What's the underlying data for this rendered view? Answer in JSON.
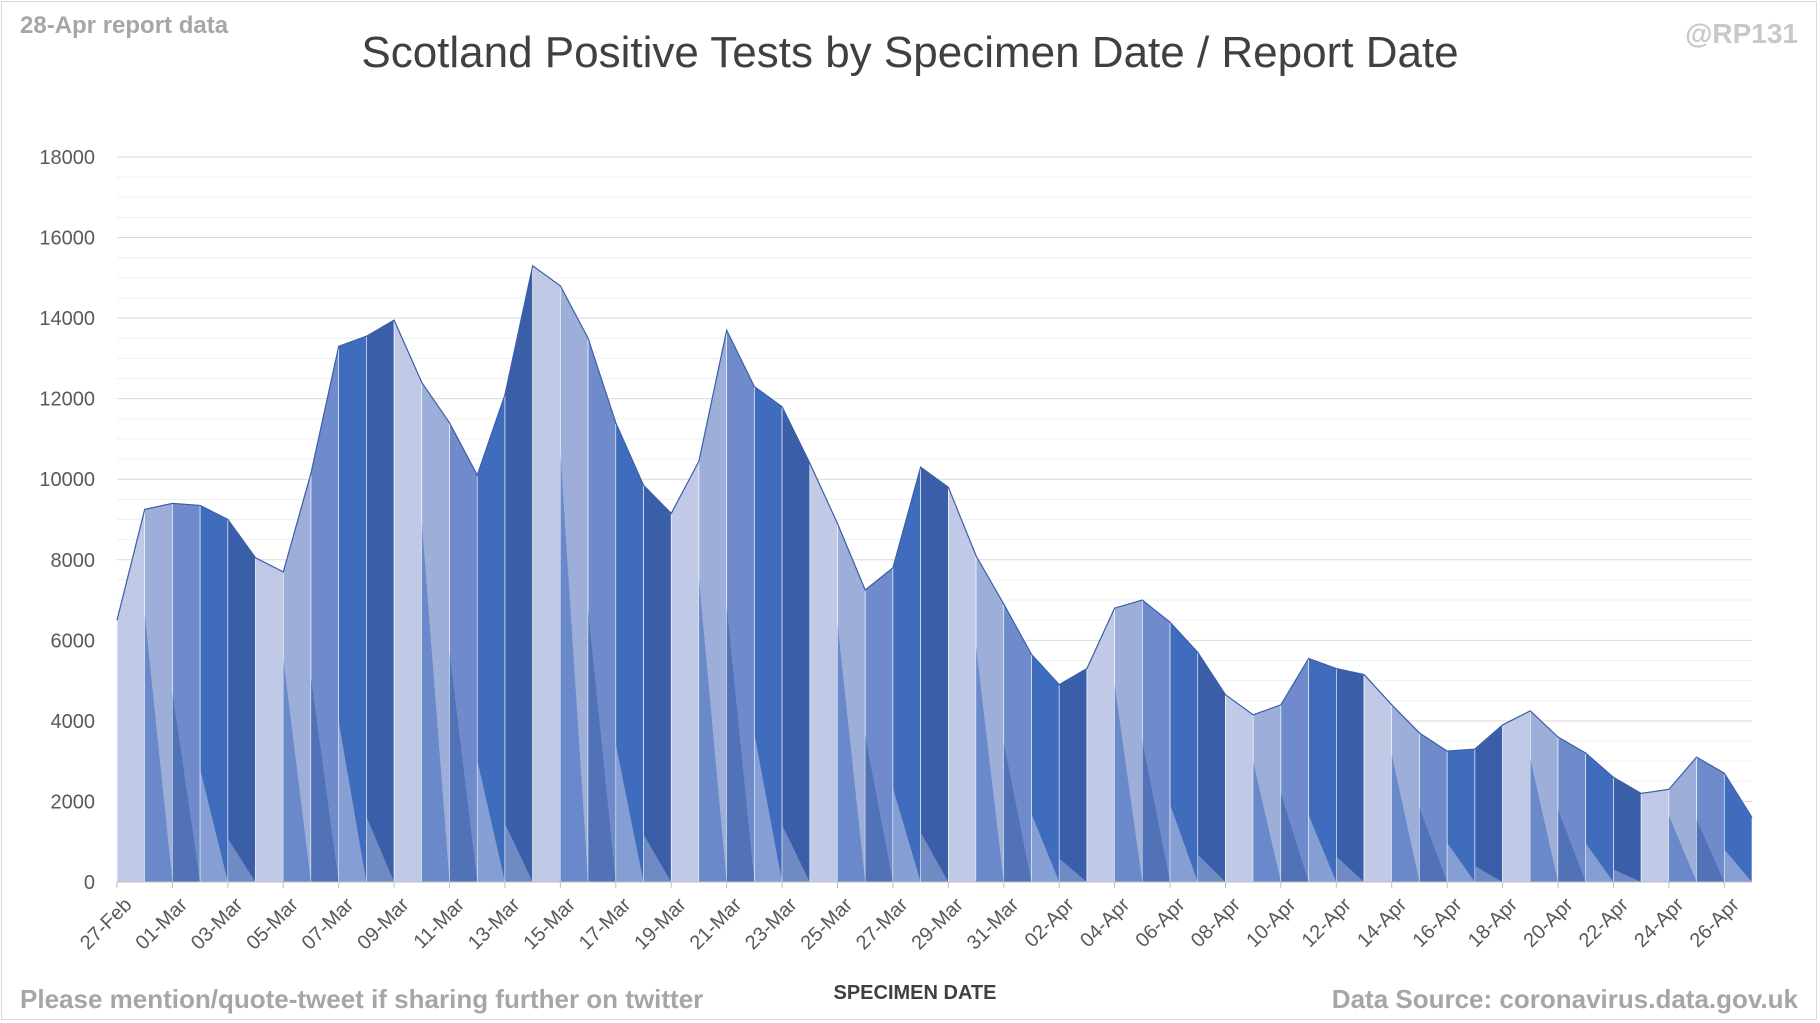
{
  "header": {
    "report_tag": "28-Apr report data",
    "handle": "@RP131",
    "footer_note": "Please mention/quote-tweet if sharing further on twitter",
    "data_source": "Data Source: coronavirus.data.gov.uk"
  },
  "chart_data": {
    "type": "area",
    "title": "Scotland Positive Tests by Specimen Date / Report Date",
    "xlabel": "SPECIMEN DATE",
    "ylabel": "",
    "ylim": [
      0,
      18000
    ],
    "yticks": [
      0,
      2000,
      4000,
      6000,
      8000,
      10000,
      12000,
      14000,
      16000,
      18000
    ],
    "grid": "major and minor horizontal gridlines",
    "legend": "none",
    "x": [
      "27-Feb",
      "28-Feb",
      "01-Mar",
      "02-Mar",
      "03-Mar",
      "04-Mar",
      "05-Mar",
      "06-Mar",
      "07-Mar",
      "08-Mar",
      "09-Mar",
      "10-Mar",
      "11-Mar",
      "12-Mar",
      "13-Mar",
      "14-Mar",
      "15-Mar",
      "16-Mar",
      "17-Mar",
      "18-Mar",
      "19-Mar",
      "20-Mar",
      "21-Mar",
      "22-Mar",
      "23-Mar",
      "24-Mar",
      "25-Mar",
      "26-Mar",
      "27-Mar",
      "28-Mar",
      "29-Mar",
      "30-Mar",
      "31-Mar",
      "01-Apr",
      "02-Apr",
      "03-Apr",
      "04-Apr",
      "05-Apr",
      "06-Apr",
      "07-Apr",
      "08-Apr",
      "09-Apr",
      "10-Apr",
      "11-Apr",
      "12-Apr",
      "13-Apr",
      "14-Apr",
      "15-Apr",
      "16-Apr",
      "17-Apr",
      "18-Apr",
      "19-Apr",
      "20-Apr",
      "21-Apr",
      "22-Apr",
      "23-Apr",
      "24-Apr",
      "25-Apr",
      "26-Apr",
      "27-Apr"
    ],
    "xtick_labels": [
      "27-Feb",
      "01-Mar",
      "03-Mar",
      "05-Mar",
      "07-Mar",
      "09-Mar",
      "11-Mar",
      "13-Mar",
      "15-Mar",
      "17-Mar",
      "19-Mar",
      "21-Mar",
      "23-Mar",
      "25-Mar",
      "27-Mar",
      "29-Mar",
      "31-Mar",
      "02-Apr",
      "04-Apr",
      "06-Apr",
      "08-Apr",
      "10-Apr",
      "12-Apr",
      "14-Apr",
      "16-Apr",
      "18-Apr",
      "20-Apr",
      "22-Apr",
      "24-Apr",
      "26-Apr"
    ],
    "values_total": [
      6500,
      9250,
      9400,
      9350,
      9000,
      8050,
      7700,
      10150,
      13300,
      13550,
      13950,
      12400,
      11400,
      10100,
      12100,
      15300,
      14800,
      13500,
      11400,
      9850,
      9150,
      10450,
      13700,
      12300,
      11800,
      10400,
      8900,
      7250,
      7800,
      10300,
      9800,
      8100,
      6900,
      5650,
      4900,
      5300,
      6800,
      7000,
      6450,
      5700,
      4650,
      4150,
      4400,
      5550,
      5300,
      5150,
      4400,
      3700,
      3250,
      3300,
      3900,
      4250,
      3600,
      3200,
      2600,
      2200,
      2300,
      3100,
      2700,
      1600
    ],
    "palette": [
      "#c0c9e6",
      "#9daed9",
      "#6f8bcb",
      "#3f6cbd",
      "#3a5ea8"
    ]
  }
}
